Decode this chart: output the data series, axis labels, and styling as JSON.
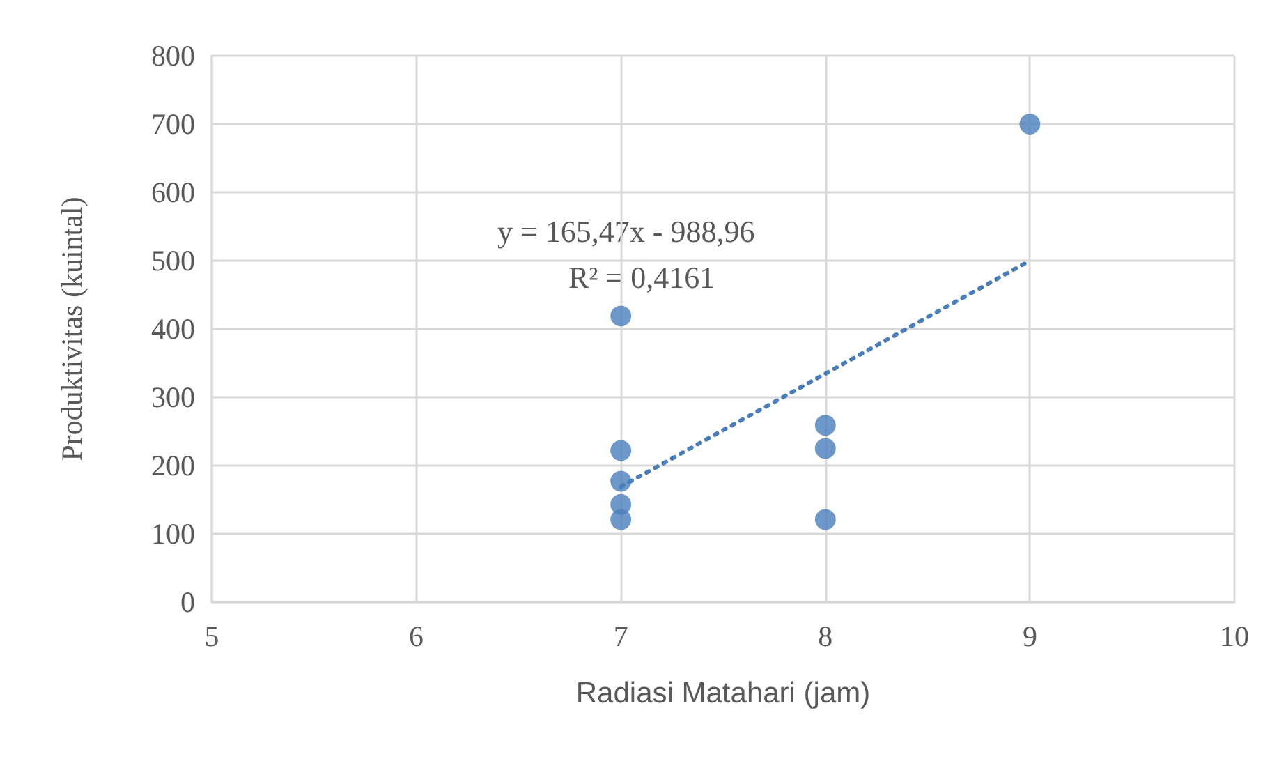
{
  "chart_data": {
    "type": "scatter",
    "xlabel": "Radiasi Matahari (jam)",
    "ylabel": "Produktivitas (kuintal)",
    "series": [
      {
        "color": "#4a7ebb",
        "x": [
          7,
          7,
          7,
          7,
          7,
          8,
          8,
          8,
          9
        ],
        "values": [
          419,
          222,
          177,
          143,
          121,
          259,
          225,
          121,
          700
        ],
        "marker": "circle"
      },
      {
        "type": "line",
        "color": "#4a7ebb",
        "x": [
          7,
          9
        ],
        "values": [
          169,
          500
        ],
        "line_style": "dotted",
        "marker": "none"
      }
    ],
    "annotations": [
      "y = 165,47x - 988,96",
      "R² = 0,4161"
    ],
    "xlim": [
      5,
      10
    ],
    "xticks": [
      5,
      6,
      7,
      8,
      9,
      10
    ],
    "ylim": [
      0,
      800
    ],
    "yticks": [
      0,
      100,
      200,
      300,
      400,
      500,
      600,
      700,
      800
    ],
    "grid": true
  }
}
